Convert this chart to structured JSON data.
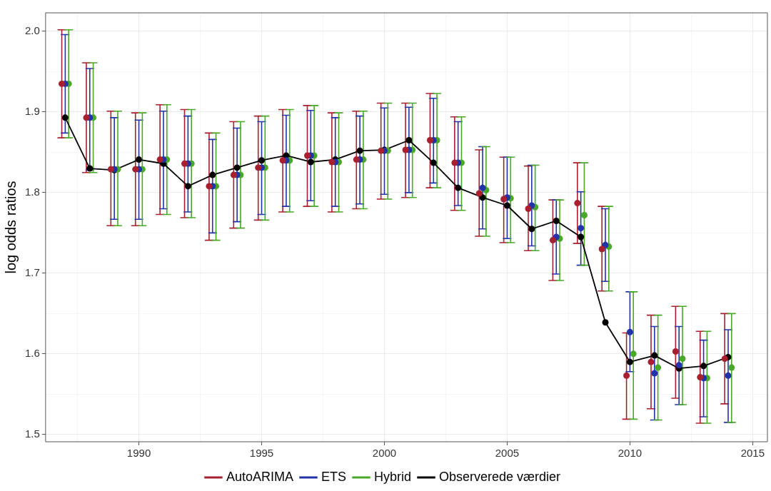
{
  "chart_data": {
    "type": "scatter",
    "ylabel": "log odds ratios",
    "legend": "bottom",
    "grid": true,
    "marker": "circle",
    "xlim": [
      1986.2,
      2015.6
    ],
    "ylim": [
      1.491,
      2.023
    ],
    "xticks": [
      {
        "value": 1987.5,
        "label": null
      },
      1990,
      {
        "value": 1992.5,
        "label": null
      },
      1995,
      {
        "value": 1997.5,
        "label": null
      },
      2000,
      {
        "value": 2002.5,
        "label": null
      },
      2005,
      {
        "value": 2007.5,
        "label": null
      },
      2010,
      {
        "value": 2012.5,
        "label": null
      },
      2015
    ],
    "yticks": [
      1.5,
      {
        "value": 1.55,
        "label": null
      },
      1.6,
      {
        "value": 1.65,
        "label": null
      },
      1.7,
      {
        "value": 1.75,
        "label": null
      },
      1.8,
      {
        "value": 1.85,
        "label": null
      },
      1.9,
      {
        "value": 1.95,
        "label": null
      },
      {
        "value": 2,
        "label": "2.0"
      }
    ],
    "x": [
      1987,
      1988,
      1989,
      1990,
      1991,
      1992,
      1993,
      1994,
      1995,
      1996,
      1997,
      1998,
      1999,
      2000,
      2001,
      2002,
      2003,
      2004,
      2005,
      2006,
      2007,
      2008,
      2009,
      2010,
      2011,
      2012,
      2013,
      2014
    ],
    "series": [
      {
        "name": "AutoARIMA",
        "color": "#a8202f",
        "x": [
          1986.86,
          1987.86,
          1988.86,
          1989.86,
          1990.86,
          1991.86,
          1992.86,
          1993.86,
          1994.86,
          1995.86,
          1996.86,
          1997.86,
          1998.86,
          1999.86,
          2000.86,
          2001.86,
          2002.86,
          2003.86,
          2004.86,
          2005.86,
          2006.86,
          2007.86,
          2008.86,
          2009.86,
          2010.86,
          2011.86,
          2012.86,
          2013.86
        ],
        "values": [
          1.935,
          1.893,
          1.829,
          1.829,
          1.841,
          1.836,
          1.808,
          1.822,
          1.831,
          1.84,
          1.846,
          1.838,
          1.841,
          1.852,
          1.853,
          1.865,
          1.837,
          1.799,
          1.792,
          1.78,
          1.741,
          1.787,
          1.73,
          1.573,
          1.59,
          1.603,
          1.571,
          1.594
        ],
        "errors": [
          [
            1.868,
            2.002
          ],
          [
            1.825,
            1.961
          ],
          [
            1.759,
            1.901
          ],
          [
            1.759,
            1.899
          ],
          [
            1.773,
            1.909
          ],
          [
            1.769,
            1.903
          ],
          [
            1.741,
            1.874
          ],
          [
            1.756,
            1.888
          ],
          [
            1.766,
            1.895
          ],
          [
            1.776,
            1.903
          ],
          [
            1.783,
            1.908
          ],
          [
            1.776,
            1.899
          ],
          [
            1.78,
            1.901
          ],
          [
            1.792,
            1.911
          ],
          [
            1.794,
            1.911
          ],
          [
            1.806,
            1.923
          ],
          [
            1.778,
            1.894
          ],
          [
            1.746,
            1.853
          ],
          [
            1.738,
            1.844
          ],
          [
            1.728,
            1.833
          ],
          [
            1.691,
            1.791
          ],
          [
            1.737,
            1.837
          ],
          [
            1.678,
            1.783
          ],
          [
            1.519,
            1.626
          ],
          [
            1.532,
            1.648
          ],
          [
            1.545,
            1.659
          ],
          [
            1.514,
            1.628
          ],
          [
            1.538,
            1.65
          ]
        ]
      },
      {
        "name": "ETS",
        "color": "#2233aa",
        "values": [
          1.935,
          1.893,
          1.829,
          1.829,
          1.841,
          1.836,
          1.808,
          1.822,
          1.831,
          1.84,
          1.846,
          1.838,
          1.841,
          1.852,
          1.853,
          1.865,
          1.837,
          1.806,
          1.794,
          1.784,
          1.745,
          1.756,
          1.735,
          1.627,
          1.576,
          1.586,
          1.57,
          1.573
        ],
        "errors": [
          [
            1.874,
            1.996
          ],
          [
            1.828,
            1.954
          ],
          [
            1.767,
            1.893
          ],
          [
            1.767,
            1.89
          ],
          [
            1.78,
            1.901
          ],
          [
            1.776,
            1.895
          ],
          [
            1.75,
            1.866
          ],
          [
            1.764,
            1.88
          ],
          [
            1.773,
            1.888
          ],
          [
            1.783,
            1.896
          ],
          [
            1.79,
            1.902
          ],
          [
            1.783,
            1.893
          ],
          [
            1.786,
            1.895
          ],
          [
            1.798,
            1.905
          ],
          [
            1.8,
            1.906
          ],
          [
            1.812,
            1.917
          ],
          [
            1.784,
            1.888
          ],
          [
            1.755,
            1.857
          ],
          [
            1.743,
            1.844
          ],
          [
            1.734,
            1.834
          ],
          [
            1.699,
            1.791
          ],
          [
            1.71,
            1.801
          ],
          [
            1.69,
            1.78
          ],
          [
            1.578,
            1.677
          ],
          [
            1.518,
            1.634
          ],
          [
            1.537,
            1.634
          ],
          [
            1.522,
            1.617
          ],
          [
            1.515,
            1.63
          ]
        ]
      },
      {
        "name": "Hybrid",
        "color": "#4aa828",
        "x": [
          1987.14,
          1988.14,
          1989.14,
          1990.14,
          1991.14,
          1992.14,
          1993.14,
          1994.14,
          1995.14,
          1996.14,
          1997.14,
          1998.14,
          1999.14,
          2000.14,
          2001.14,
          2002.14,
          2003.14,
          2004.14,
          2005.14,
          2006.14,
          2007.14,
          2008.14,
          2009.14,
          2010.14,
          2011.14,
          2012.14,
          2013.14,
          2014.14
        ],
        "values": [
          1.935,
          1.893,
          1.829,
          1.829,
          1.841,
          1.836,
          1.808,
          1.822,
          1.831,
          1.84,
          1.846,
          1.838,
          1.841,
          1.852,
          1.853,
          1.865,
          1.837,
          1.803,
          1.793,
          1.782,
          1.743,
          1.772,
          1.733,
          1.6,
          1.583,
          1.594,
          1.57,
          1.583
        ],
        "errors": [
          [
            1.868,
            2.002
          ],
          [
            1.825,
            1.961
          ],
          [
            1.759,
            1.901
          ],
          [
            1.759,
            1.899
          ],
          [
            1.773,
            1.909
          ],
          [
            1.769,
            1.903
          ],
          [
            1.741,
            1.874
          ],
          [
            1.756,
            1.888
          ],
          [
            1.766,
            1.895
          ],
          [
            1.776,
            1.903
          ],
          [
            1.783,
            1.908
          ],
          [
            1.776,
            1.899
          ],
          [
            1.78,
            1.901
          ],
          [
            1.792,
            1.911
          ],
          [
            1.794,
            1.911
          ],
          [
            1.806,
            1.923
          ],
          [
            1.778,
            1.894
          ],
          [
            1.746,
            1.857
          ],
          [
            1.738,
            1.844
          ],
          [
            1.728,
            1.834
          ],
          [
            1.691,
            1.791
          ],
          [
            1.71,
            1.837
          ],
          [
            1.678,
            1.783
          ],
          [
            1.519,
            1.677
          ],
          [
            1.518,
            1.648
          ],
          [
            1.537,
            1.659
          ],
          [
            1.514,
            1.628
          ],
          [
            1.515,
            1.65
          ]
        ]
      },
      {
        "name": "Observerede værdier",
        "color": "#000000",
        "type": "line",
        "values": [
          1.893,
          1.83,
          1.828,
          1.841,
          1.836,
          1.808,
          1.822,
          1.831,
          1.84,
          1.846,
          1.838,
          1.841,
          1.852,
          1.853,
          1.865,
          1.837,
          1.806,
          1.794,
          1.784,
          1.755,
          1.765,
          1.745,
          1.639,
          1.59,
          1.598,
          1.582,
          1.585,
          1.596
        ]
      }
    ]
  }
}
